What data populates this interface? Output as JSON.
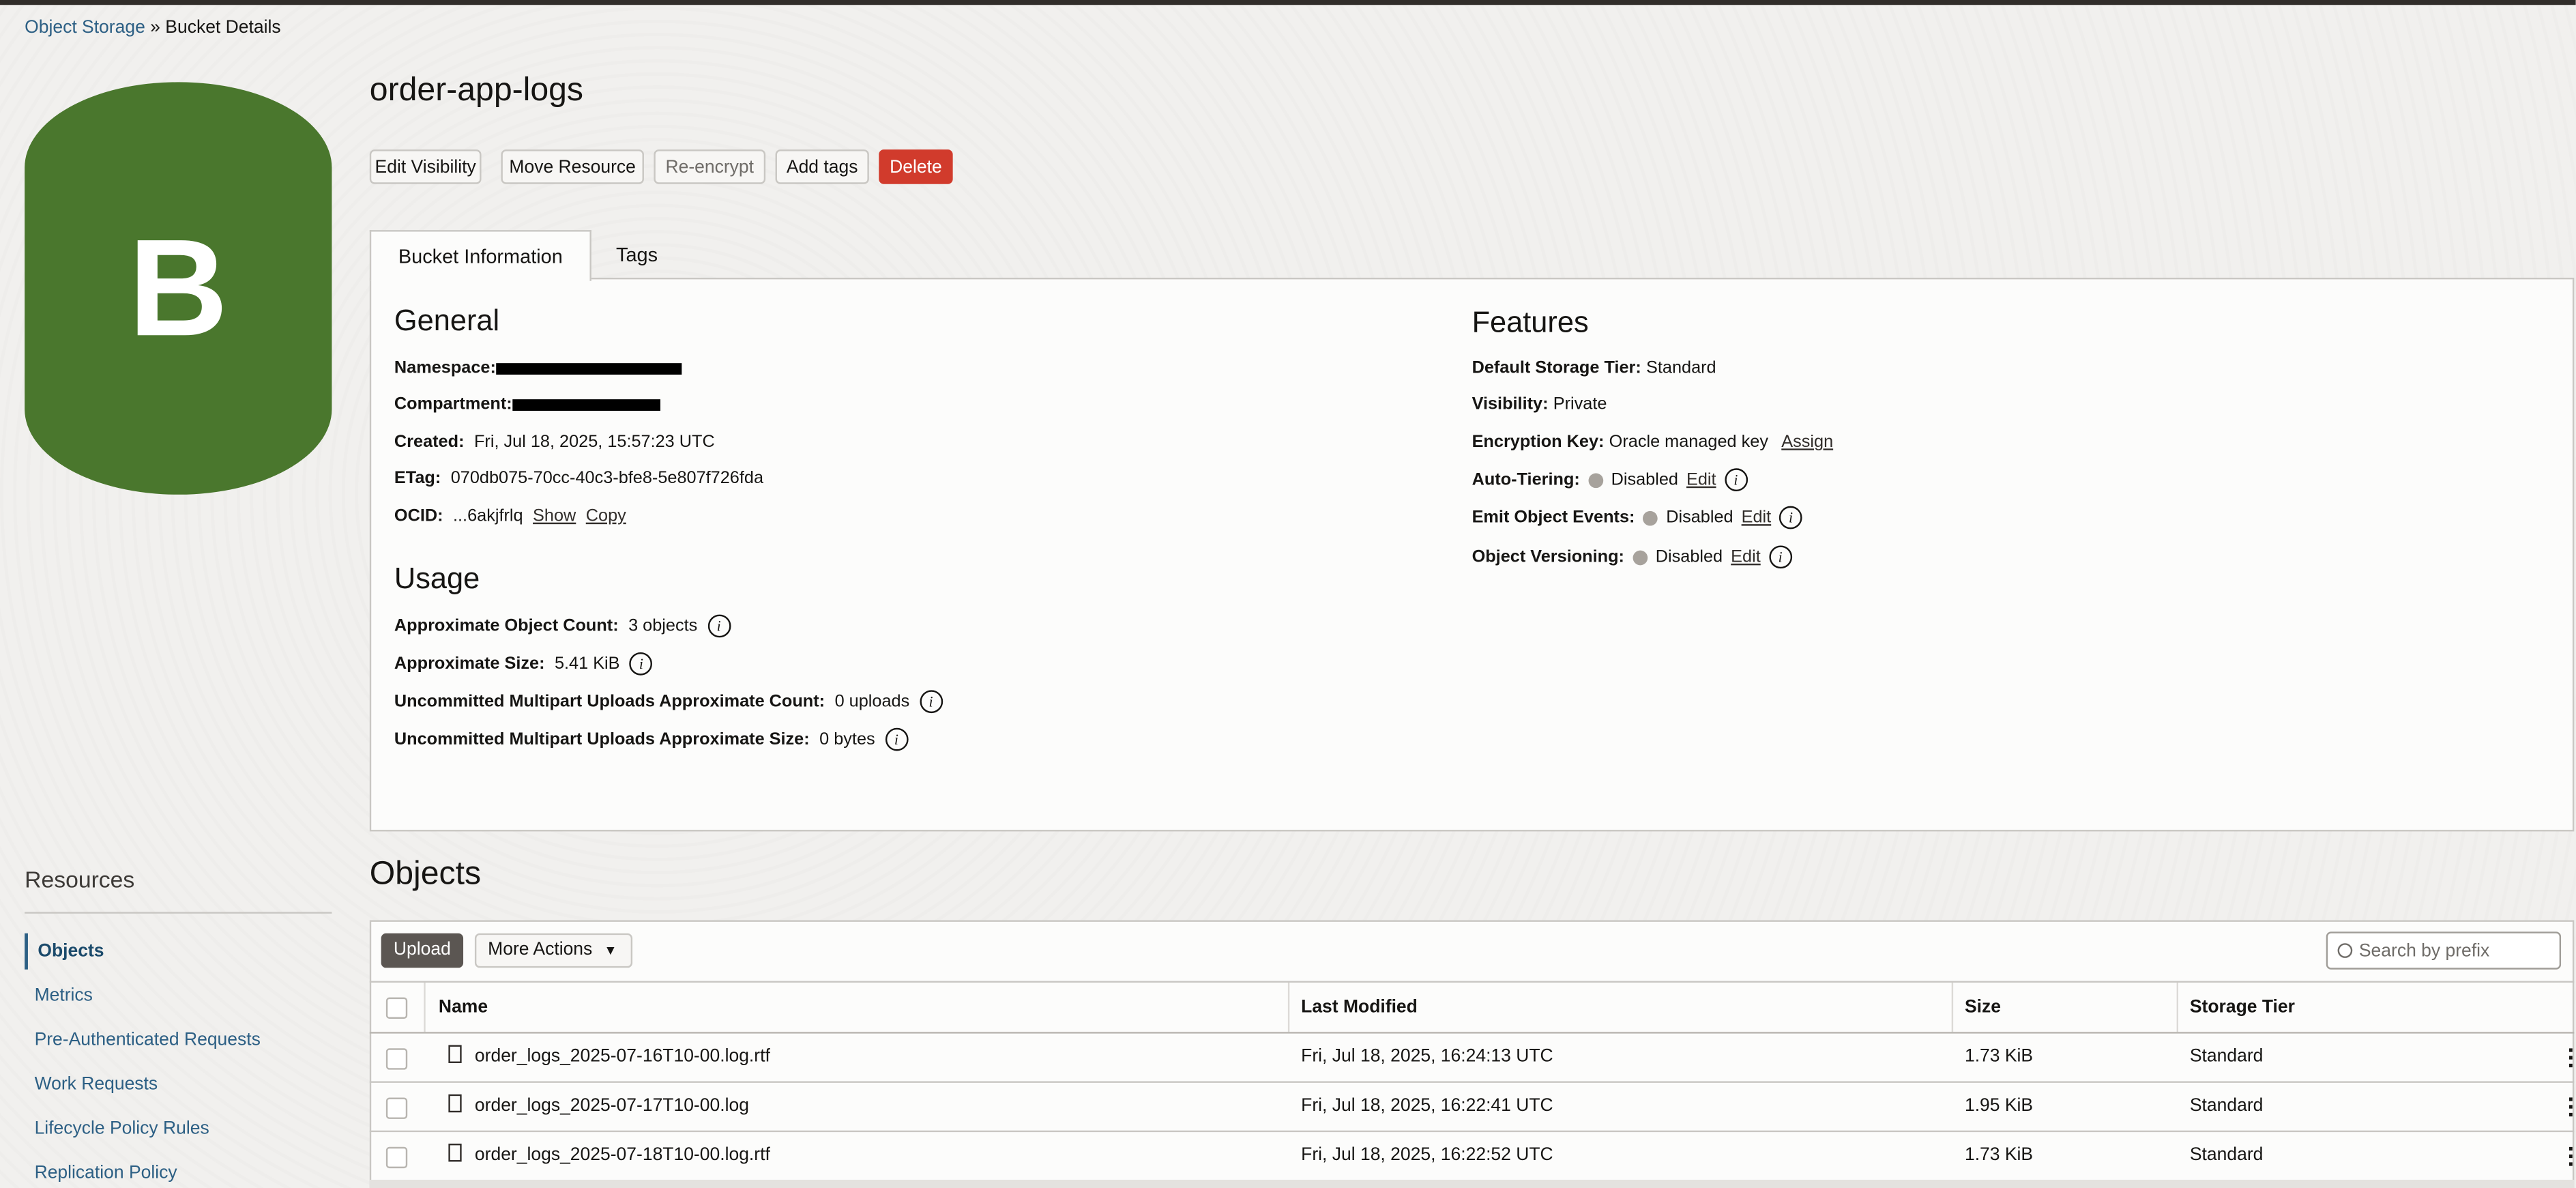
{
  "breadcrumb": {
    "parent": "Object Storage",
    "separator": "»",
    "current": "Bucket Details"
  },
  "avatar": {
    "letter": "B",
    "color": "#4a772d"
  },
  "bucket": {
    "name": "order-app-logs"
  },
  "actions": {
    "edit_visibility": "Edit Visibility",
    "move_resource": "Move Resource",
    "re_encrypt": "Re-encrypt",
    "add_tags": "Add tags",
    "delete": "Delete"
  },
  "tabs": {
    "info": "Bucket Information",
    "tags": "Tags"
  },
  "general": {
    "title": "General",
    "namespace_label": "Namespace:",
    "compartment_label": "Compartment:",
    "created_label": "Created:",
    "created": "Fri, Jul 18, 2025, 15:57:23 UTC",
    "etag_label": "ETag:",
    "etag": "070db075-70cc-40c3-bfe8-5e807f726fda",
    "ocid_label": "OCID:",
    "ocid": "...6akjfrlq",
    "show": "Show",
    "copy": "Copy"
  },
  "usage": {
    "title": "Usage",
    "rows": [
      {
        "label": "Approximate Object Count:",
        "value": "3 objects"
      },
      {
        "label": "Approximate Size:",
        "value": "5.41 KiB"
      },
      {
        "label": "Uncommitted Multipart Uploads Approximate Count:",
        "value": "0 uploads"
      },
      {
        "label": "Uncommitted Multipart Uploads Approximate Size:",
        "value": "0 bytes"
      }
    ]
  },
  "features": {
    "title": "Features",
    "tier_label": "Default Storage Tier:",
    "tier": "Standard",
    "visibility_label": "Visibility:",
    "visibility": "Private",
    "encryption_label": "Encryption Key:",
    "encryption": "Oracle managed key",
    "assign": "Assign",
    "toggles": [
      {
        "label": "Auto-Tiering:",
        "status": "Disabled",
        "edit": "Edit"
      },
      {
        "label": "Emit Object Events:",
        "status": "Disabled",
        "edit": "Edit"
      },
      {
        "label": "Object Versioning:",
        "status": "Disabled",
        "edit": "Edit"
      }
    ]
  },
  "resources": {
    "title": "Resources",
    "items": [
      "Objects",
      "Metrics",
      "Pre-Authenticated Requests",
      "Work Requests",
      "Lifecycle Policy Rules",
      "Replication Policy"
    ],
    "active": "Objects"
  },
  "objects": {
    "title": "Objects",
    "upload": "Upload",
    "more_actions": "More Actions",
    "search_placeholder": "Search by prefix",
    "columns": [
      "Name",
      "Last Modified",
      "Size",
      "Storage Tier"
    ],
    "rows": [
      {
        "name": "order_logs_2025-07-16T10-00.log.rtf",
        "modified": "Fri, Jul 18, 2025, 16:24:13 UTC",
        "size": "1.73 KiB",
        "tier": "Standard"
      },
      {
        "name": "order_logs_2025-07-17T10-00.log",
        "modified": "Fri, Jul 18, 2025, 16:22:41 UTC",
        "size": "1.95 KiB",
        "tier": "Standard"
      },
      {
        "name": "order_logs_2025-07-18T10-00.log.rtf",
        "modified": "Fri, Jul 18, 2025, 16:22:52 UTC",
        "size": "1.73 KiB",
        "tier": "Standard"
      }
    ]
  }
}
